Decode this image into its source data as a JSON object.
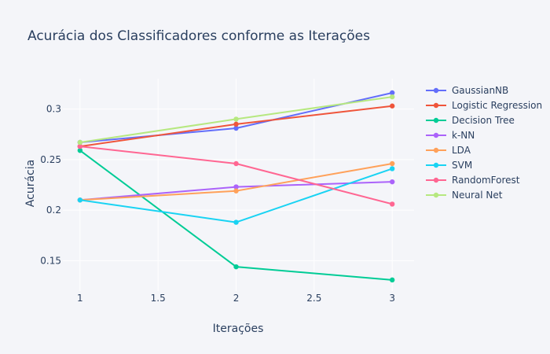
{
  "chart_data": {
    "type": "line",
    "title": "Acurácia dos Classificadores conforme as Iterações",
    "xlabel": "Iterações",
    "ylabel": "Acurácia",
    "x": [
      1,
      2,
      3
    ],
    "xlim": [
      0.89,
      3.14
    ],
    "ylim": [
      0.12,
      0.33
    ],
    "x_ticks": [
      1,
      1.5,
      2,
      2.5,
      3
    ],
    "x_tick_labels": [
      "1",
      "1.5",
      "2",
      "2.5",
      "3"
    ],
    "y_ticks": [
      0.15,
      0.2,
      0.25,
      0.3
    ],
    "y_tick_labels": [
      "0.15",
      "0.2",
      "0.25",
      "0.3"
    ],
    "grid": true,
    "legend_position": "right",
    "series": [
      {
        "name": "GaussianNB",
        "color": "#636efa",
        "values": [
          0.267,
          0.281,
          0.316
        ]
      },
      {
        "name": "Logistic Regression",
        "color": "#EF553B",
        "values": [
          0.263,
          0.285,
          0.303
        ]
      },
      {
        "name": "Decision Tree",
        "color": "#00cc96",
        "values": [
          0.259,
          0.144,
          0.131
        ]
      },
      {
        "name": "k-NN",
        "color": "#ab63fa",
        "values": [
          0.21,
          0.223,
          0.228
        ]
      },
      {
        "name": "LDA",
        "color": "#FFA15A",
        "values": [
          0.21,
          0.219,
          0.246
        ]
      },
      {
        "name": "SVM",
        "color": "#19d3f3",
        "values": [
          0.21,
          0.188,
          0.241
        ]
      },
      {
        "name": "RandomForest",
        "color": "#FF6692",
        "values": [
          0.263,
          0.246,
          0.206
        ]
      },
      {
        "name": "Neural Net",
        "color": "#B6E880",
        "values": [
          0.267,
          0.29,
          0.312
        ]
      }
    ]
  }
}
